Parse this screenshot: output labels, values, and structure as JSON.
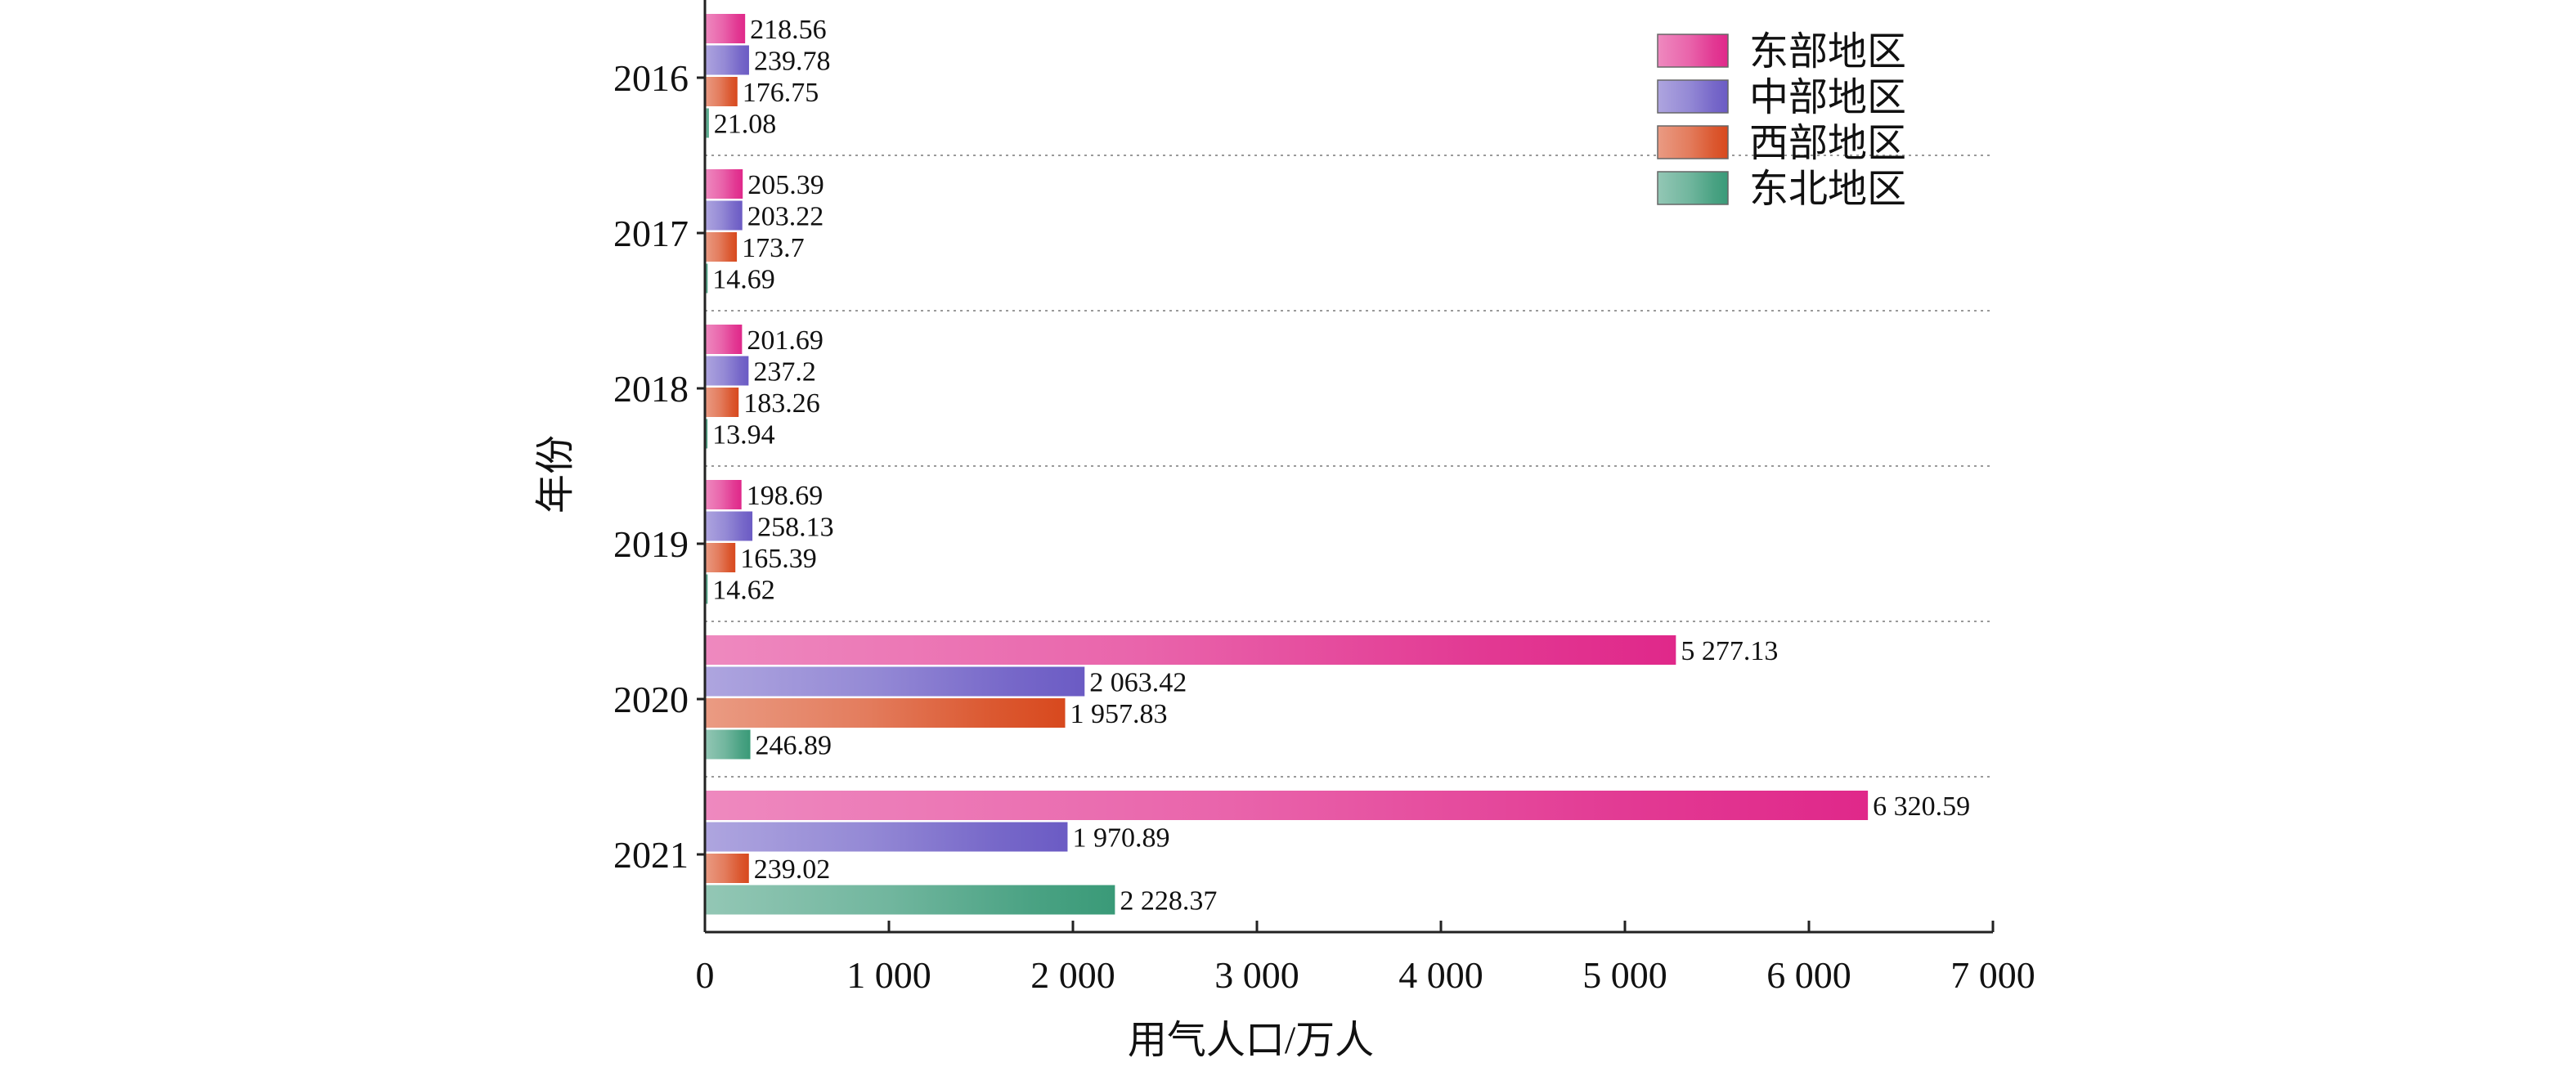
{
  "chart_data": {
    "type": "bar",
    "orientation": "horizontal",
    "categories": [
      "2016",
      "2017",
      "2018",
      "2019",
      "2020",
      "2021"
    ],
    "series": [
      {
        "name": "东部地区",
        "values": [
          218.56,
          205.39,
          201.69,
          198.69,
          5277.13,
          6320.59
        ],
        "labels": [
          "218.56",
          "205.39",
          "201.69",
          "198.69",
          "5 277.13",
          "6 320.59"
        ],
        "color": "#E0288A"
      },
      {
        "name": "中部地区",
        "values": [
          239.78,
          203.22,
          237.2,
          258.13,
          2063.42,
          1970.89
        ],
        "labels": [
          "239.78",
          "203.22",
          "237.2",
          "258.13",
          "2 063.42",
          "1 970.89"
        ],
        "color": "#6B5BC4"
      },
      {
        "name": "西部地区",
        "values": [
          176.75,
          173.7,
          183.26,
          165.39,
          1957.83,
          239.02
        ],
        "labels": [
          "176.75",
          "173.7",
          "183.26",
          "165.39",
          "1 957.83",
          "239.02"
        ],
        "color": "#D8491E"
      },
      {
        "name": "东北地区",
        "values": [
          21.08,
          14.69,
          13.94,
          14.62,
          246.89,
          2228.37
        ],
        "labels": [
          "21.08",
          "14.69",
          "13.94",
          "14.62",
          "246.89",
          "2 228.37"
        ],
        "color": "#3A9A78"
      }
    ],
    "xlabel": "用气人口/万人",
    "ylabel": "年份",
    "xlim": [
      0,
      7000
    ],
    "xticks": [
      0,
      1000,
      2000,
      3000,
      4000,
      5000,
      6000,
      7000
    ],
    "xtick_labels": [
      "0",
      "1 000",
      "2 000",
      "3 000",
      "4 000",
      "5 000",
      "6 000",
      "7 000"
    ],
    "grid": "dotted horizontal separators between year groups",
    "legend_position": "top-right"
  }
}
